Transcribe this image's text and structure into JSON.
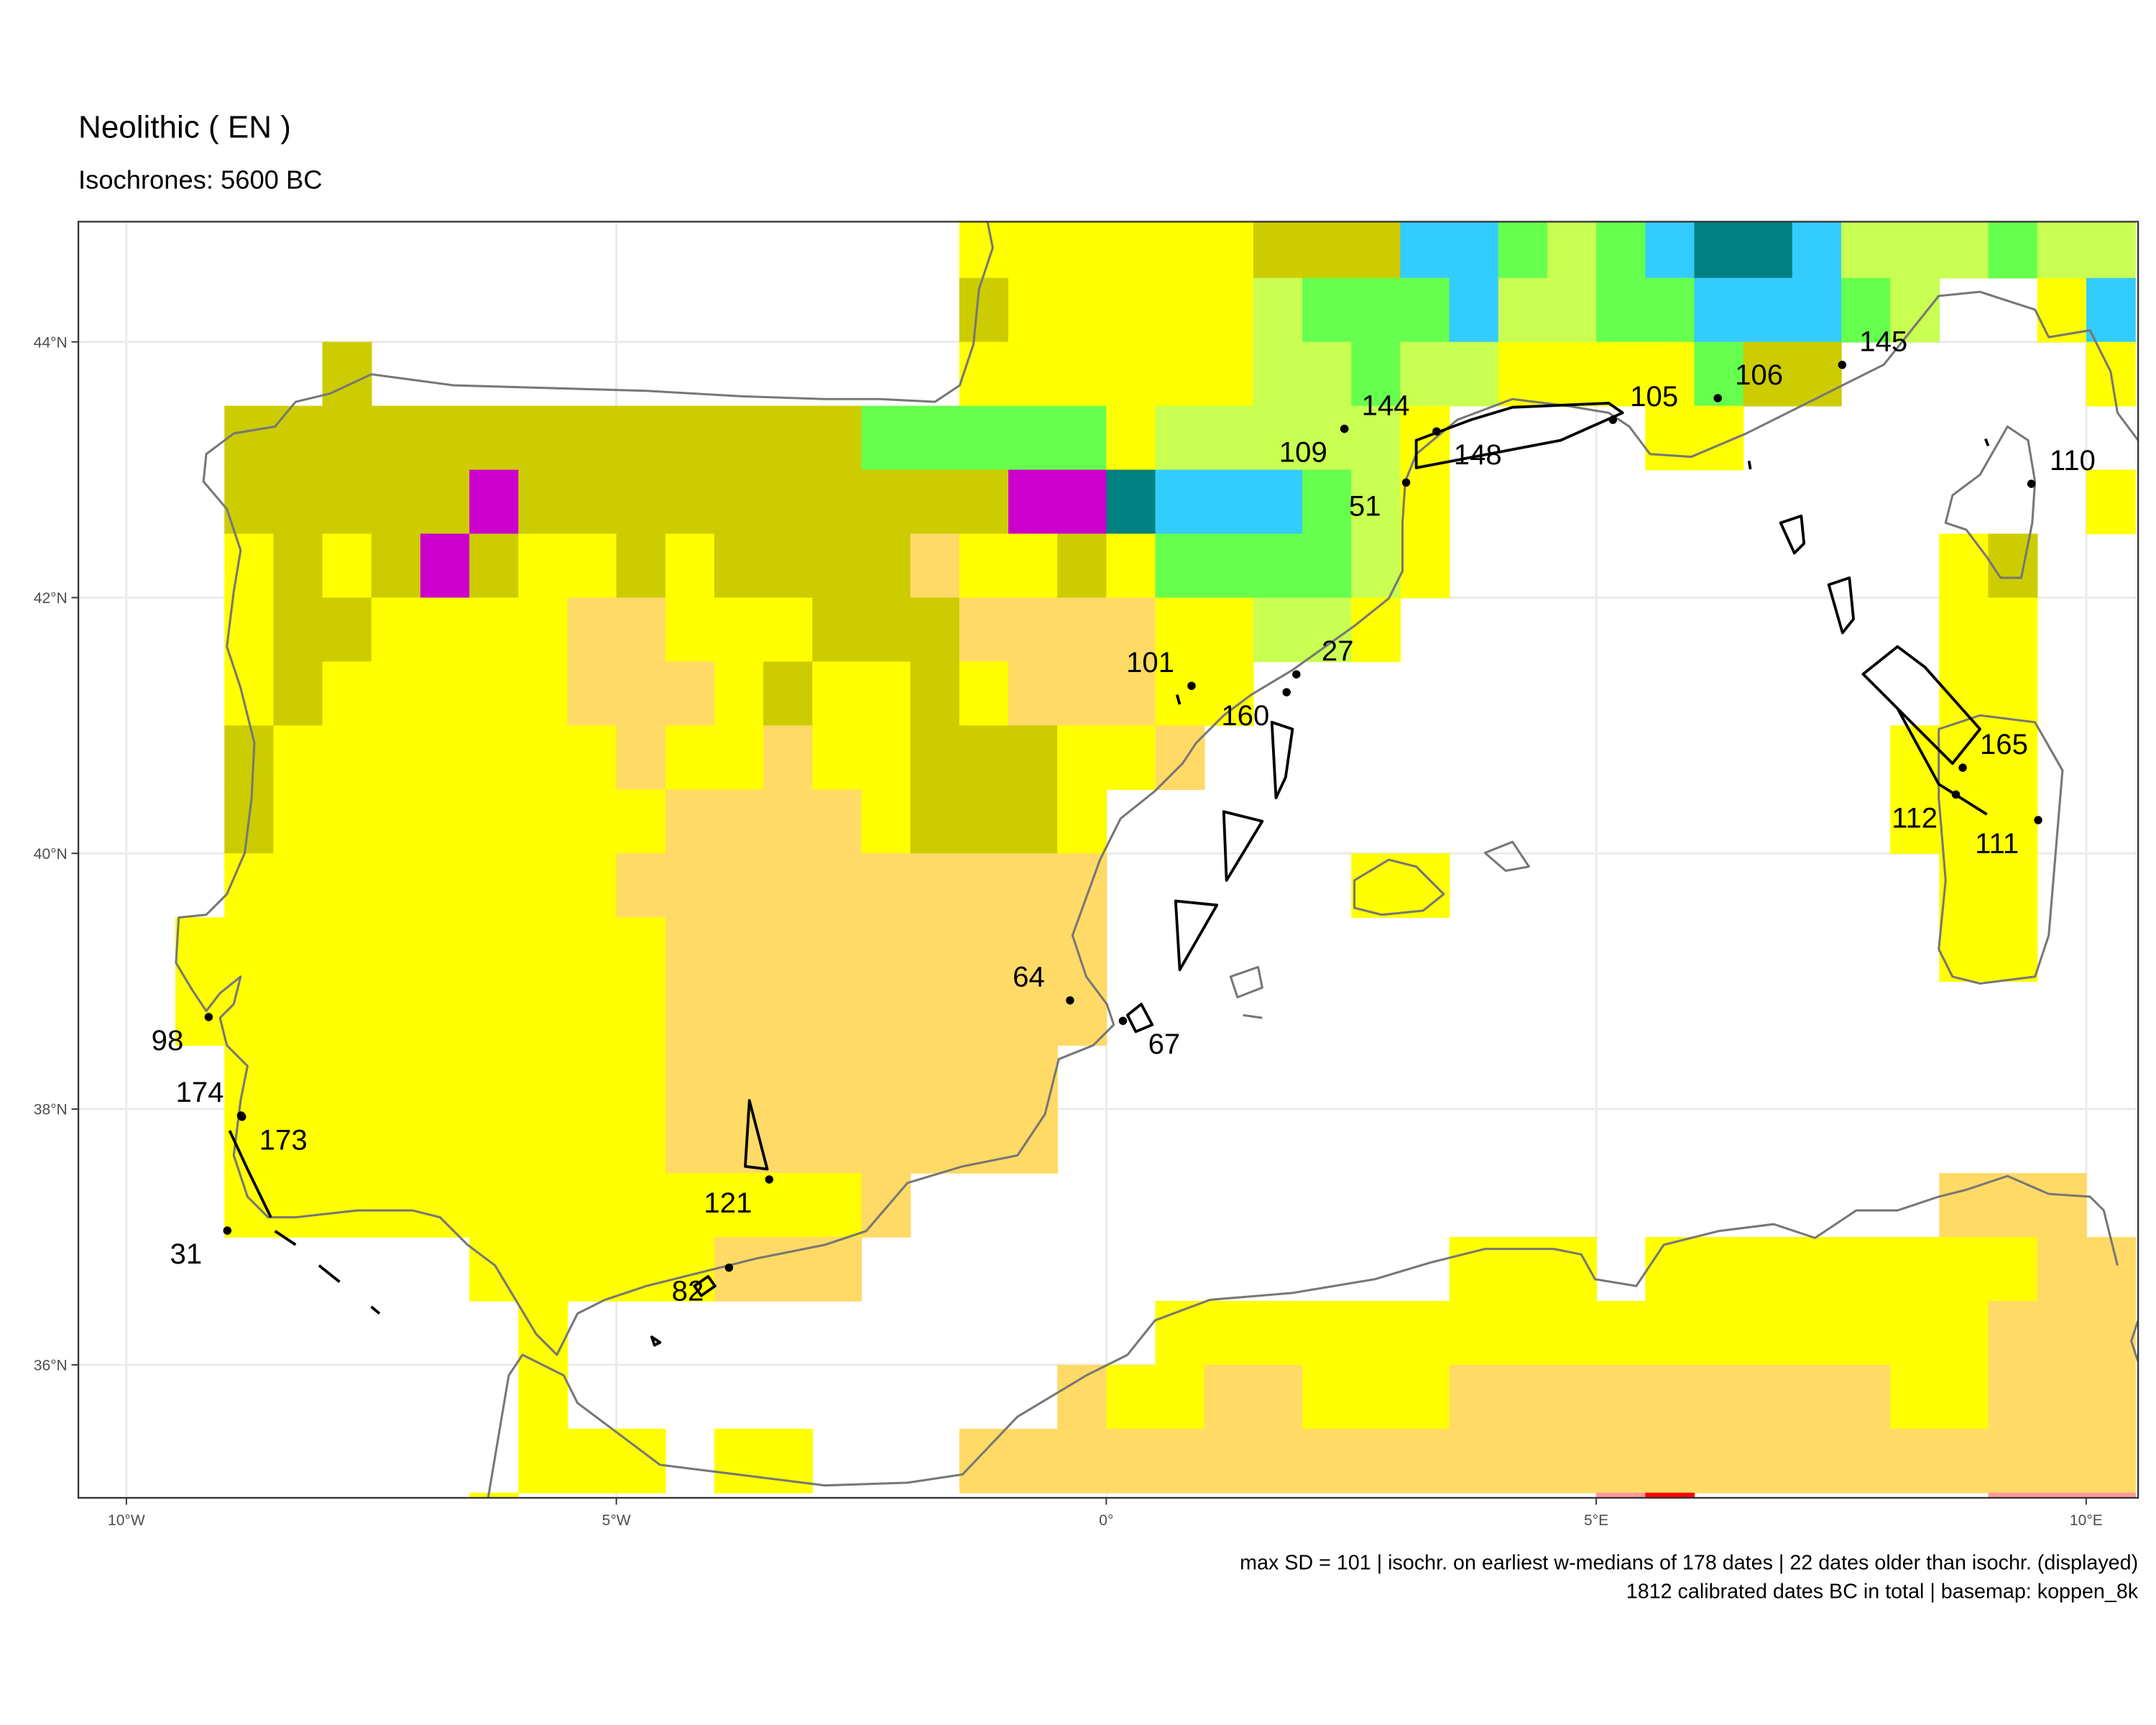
{
  "chart_data": {
    "type": "map",
    "title": "Neolithic ( EN )",
    "subtitle": "Isochrones: 5600 BC",
    "caption": [
      "max SD = 101 | isochr. on earliest w-medians of 178 dates | 22 dates older than isochr. (displayed)",
      "1812 calibrated dates BC in total | basemap: koppen_8k"
    ],
    "xlim": [
      -10.49,
      10.53
    ],
    "ylim": [
      34.96,
      44.94
    ],
    "xticks": [
      {
        "value": -10,
        "label": "10°W"
      },
      {
        "value": -5,
        "label": "5°W"
      },
      {
        "value": 0,
        "label": "0°"
      },
      {
        "value": 5,
        "label": "5°E"
      },
      {
        "value": 10,
        "label": "10°E"
      }
    ],
    "yticks": [
      {
        "value": 36,
        "label": "36°N"
      },
      {
        "value": 38,
        "label": "38°N"
      },
      {
        "value": 40,
        "label": "40°N"
      },
      {
        "value": 42,
        "label": "42°N"
      },
      {
        "value": 44,
        "label": "44°N"
      }
    ],
    "grid": true,
    "raster": {
      "lon0": -10.5,
      "lat0": 45,
      "cell": 0.5,
      "palette": {
        "Y": "#ffff00",
        "O": "#cccc00",
        "T": "#ffda66",
        "G": "#66ff4d",
        "L": "#c8ff52",
        "B": "#33ccff",
        "D": "#008080",
        "M": "#cc00cc",
        "P": "#ff9999",
        "R": "#ff0000"
      },
      "rows": [
        "..................YYYYYYOOOBBGLGBDDBLLLGLL",
        "..................OYYYYYLGGGBLLGGBBBGL..YB",
        ".....O............YYYYYYLLGLLYYYYGOO.....Y",
        "...OOOOOOOOOOOOOGGGGGYLLLLLY....YY........",
        "...OOOOOMOOOOOOOOOOMMDBBBGLY.............Y",
        "...YOYOMOYYOYOOOOTYYOYGGGGLY..........YO..",
        "...YOOYYYYTTYYYOOOTTTTYYLLY...........YY..",
        "...YOYYYYYTTTYOYYOYTTTYY..............YY..",
        "...OYYYYYYYTYYTYYOOOYYT..............YYY..",
        "...OYYYYYYYYTTTTYOOOY................YYY..",
        "...YYYYYYYYTTTTTTTTTT.....YY..........YY..",
        "..YYYYYYYYYYTTTTTTTTT.................YY..",
        "..YYYYYYYYYYTTTTTTTTT.....................",
        "...YYYYYYYYYTTTTTTTT......................",
        "...YYYYYYYYYTTTTTTTT......................",
        "...YYYYYYYYYYYYYT.....................TTT.",
        "........YYYYYTTT............YYY.YYYYYYYYTT",
        ".........Y............YYYYYYYYYYYYYYYYYTTT",
        ".........Y..........TYYTTYYYTTTTTTTTTYYTTT",
        ".........YYY.YY...TTTTTTTTTTTTTTTTTTTTTTTT",
        "........Y......................PR......PPP"
      ]
    },
    "points": {
      "color": "#000000",
      "labels": [
        "98",
        "174",
        "173",
        "31",
        "121",
        "82",
        "64",
        "67",
        "101",
        "160",
        "27",
        "109",
        "144",
        "51",
        "148",
        "105",
        "106",
        "145",
        "110",
        "165",
        "112",
        "111"
      ],
      "x": [
        -9.16,
        -8.83,
        -8.82,
        -8.97,
        -3.44,
        -3.85,
        -0.37,
        0.17,
        0.87,
        1.84,
        1.94,
        2.43,
        2.43,
        3.06,
        3.37,
        5.17,
        6.24,
        7.51,
        9.44,
        8.74,
        8.67,
        9.51
      ],
      "y": [
        38.72,
        37.95,
        37.94,
        37.05,
        37.45,
        36.76,
        38.85,
        38.69,
        41.31,
        41.26,
        41.4,
        43.32,
        43.32,
        42.9,
        43.3,
        43.39,
        43.56,
        43.82,
        42.89,
        40.67,
        40.46,
        40.26
      ],
      "label_pos": [
        "sw",
        "nw",
        "se",
        "sw",
        "sw",
        "sw",
        "nw",
        "se",
        "nw",
        "sw",
        "ne",
        "sw",
        "ne",
        "sw",
        "se",
        "ne",
        "ne",
        "ne",
        "ne",
        "ne",
        "sw",
        "sw"
      ]
    }
  }
}
